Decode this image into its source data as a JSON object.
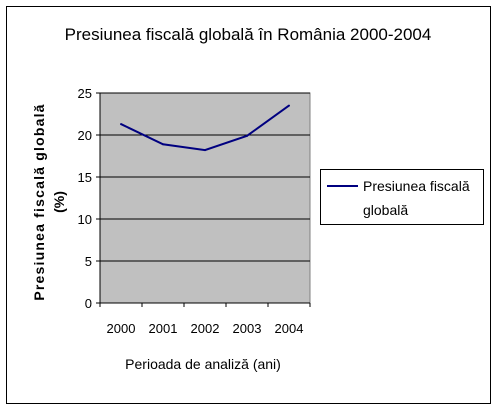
{
  "chart_data": {
    "type": "line",
    "title": "Presiunea fiscală globală în România 2000-2004",
    "xlabel": "Perioada de analiză (ani)",
    "ylabel_line1": "Presiunea fiscală globală",
    "ylabel_line2": "(%)",
    "categories": [
      "2000",
      "2001",
      "2002",
      "2003",
      "2004"
    ],
    "series": [
      {
        "name": "Presiunea fiscală globală",
        "legend_line1": "Presiunea fiscală",
        "legend_line2": "globală",
        "values": [
          21.3,
          18.9,
          18.2,
          19.9,
          23.5
        ],
        "color": "#000080"
      }
    ],
    "ylim": [
      0,
      25
    ],
    "yticks": [
      "0",
      "5",
      "10",
      "15",
      "20",
      "25"
    ],
    "grid": true,
    "legend_position": "right",
    "plot_background": "#c0c0c0"
  }
}
